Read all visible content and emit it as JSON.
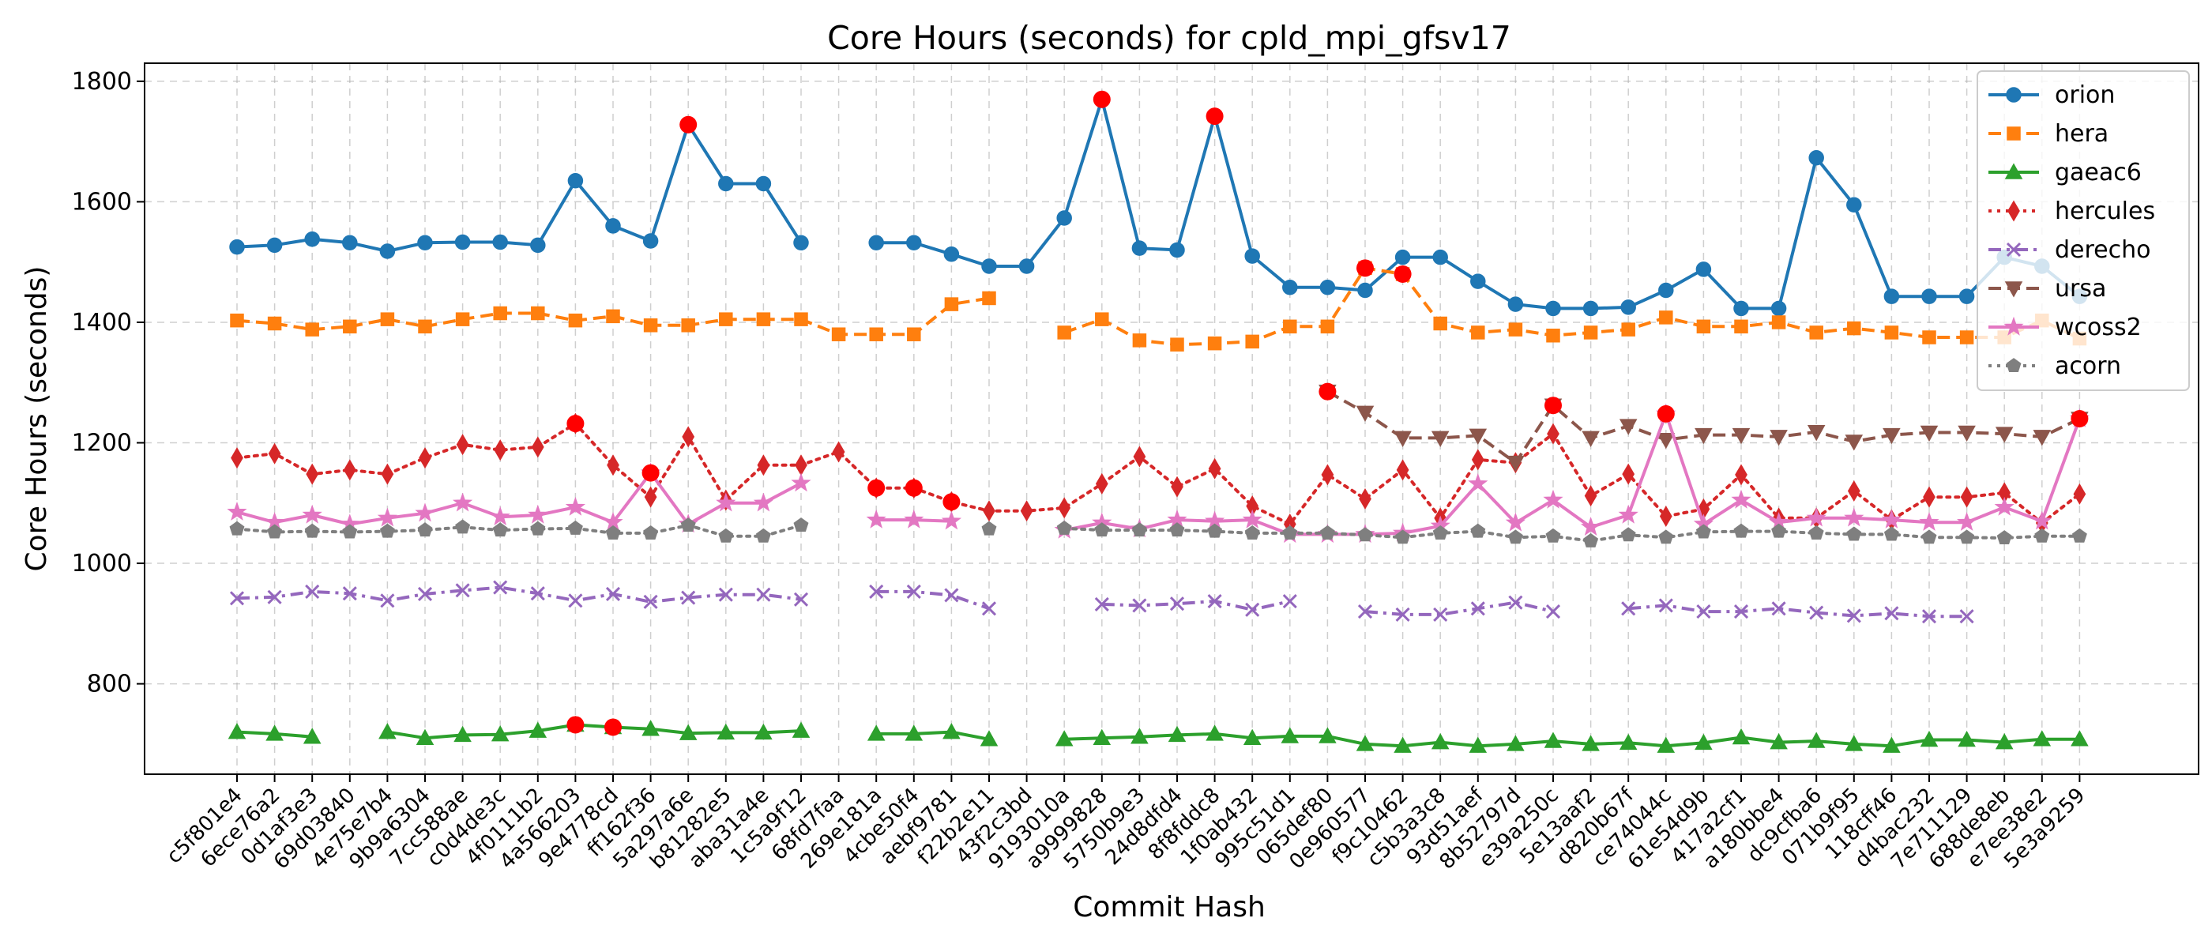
{
  "chart_data": {
    "type": "line",
    "title": "Core Hours (seconds) for cpld_mpi_gfsv17",
    "xlabel": "Commit Hash",
    "ylabel": "Core Hours (seconds)",
    "ylim": [
      650,
      1830
    ],
    "yticks": [
      800,
      1000,
      1200,
      1400,
      1600,
      1800
    ],
    "grid": true,
    "legend_position": "top-right",
    "categories": [
      "c5f801e4",
      "6ece76a2",
      "0d1af3e3",
      "69d03840",
      "4e75e7b4",
      "9b9a6304",
      "7cc588ae",
      "c0d4de3c",
      "4f0111b2",
      "4a566203",
      "9e4778cd",
      "ff162f36",
      "5a297a6e",
      "b81282e5",
      "aba31a4e",
      "1c5a9f12",
      "68fd7faa",
      "269e181a",
      "4cbe50f4",
      "aebf9781",
      "f22b2e11",
      "43f2c3bd",
      "9193010a",
      "a9999828",
      "5750b9e3",
      "24d8dfd4",
      "8f8fddc8",
      "1f0ab432",
      "995c51d1",
      "065def80",
      "0e960577",
      "f9c10462",
      "c5b3a3c8",
      "93d51aef",
      "8b52797d",
      "e39a250c",
      "5e13aaf2",
      "d820b67f",
      "ce74044c",
      "61e54d9b",
      "417a2cf1",
      "a180bbe4",
      "dc9cfba6",
      "071b9f95",
      "118cff46",
      "d4bac232",
      "7e711129",
      "688de8eb",
      "e7ee38e2",
      "5e3a9259"
    ],
    "series": [
      {
        "name": "orion",
        "color": "#1f77b4",
        "marker": "circle",
        "dash": "solid",
        "values": [
          1525,
          1528,
          1538,
          1532,
          1518,
          1532,
          1533,
          1533,
          1528,
          1635,
          1560,
          1535,
          1728,
          1630,
          1630,
          1532,
          null,
          1532,
          1532,
          1513,
          1493,
          1493,
          1573,
          1770,
          1523,
          1520,
          1742,
          1510,
          1458,
          1458,
          1453,
          1508,
          1508,
          1468,
          1430,
          1423,
          1423,
          1425,
          1453,
          1488,
          1423,
          1423,
          1673,
          1595,
          1443,
          1443,
          1443,
          1508,
          1493,
          1443
        ]
      },
      {
        "name": "hera",
        "color": "#ff7f0e",
        "marker": "square",
        "dash": "dashed",
        "values": [
          1403,
          1398,
          1388,
          1393,
          1405,
          1393,
          1405,
          1415,
          1415,
          1403,
          1410,
          1395,
          1395,
          1405,
          1405,
          1405,
          1380,
          1380,
          1380,
          1430,
          1440,
          null,
          1383,
          1405,
          1370,
          1363,
          1365,
          1368,
          1393,
          1393,
          1490,
          1480,
          1398,
          1383,
          1388,
          1378,
          1383,
          1388,
          1408,
          1393,
          1393,
          1400,
          1383,
          1390,
          1383,
          1375,
          1375,
          1375,
          1403,
          1373
        ]
      },
      {
        "name": "gaeac6",
        "color": "#2ca02c",
        "marker": "triangle",
        "dash": "solid",
        "values": [
          720,
          717,
          712,
          null,
          720,
          710,
          715,
          716,
          722,
          732,
          728,
          725,
          718,
          719,
          719,
          722,
          null,
          717,
          717,
          720,
          708,
          null,
          708,
          710,
          712,
          715,
          717,
          710,
          713,
          713,
          700,
          697,
          703,
          697,
          700,
          705,
          700,
          702,
          697,
          702,
          711,
          703,
          705,
          700,
          697,
          707,
          707,
          703,
          708,
          708
        ]
      },
      {
        "name": "hercules",
        "color": "#d62728",
        "marker": "diamond",
        "dash": "dotted",
        "values": [
          1175,
          1182,
          1148,
          1155,
          1148,
          1175,
          1197,
          1188,
          1193,
          1232,
          1163,
          1110,
          1210,
          1105,
          1163,
          1163,
          1185,
          1125,
          1125,
          1102,
          1087,
          1087,
          1092,
          1132,
          1177,
          1127,
          1157,
          1095,
          1065,
          1147,
          1107,
          1155,
          1075,
          1172,
          1167,
          1215,
          1112,
          1148,
          1078,
          1090,
          1147,
          1075,
          1075,
          1120,
          1072,
          1110,
          1110,
          1117,
          1067,
          1115
        ]
      },
      {
        "name": "derecho",
        "color": "#9467bd",
        "marker": "x",
        "dash": "dashdot",
        "values": [
          942,
          944,
          953,
          950,
          938,
          949,
          955,
          960,
          950,
          938,
          949,
          936,
          943,
          948,
          948,
          940,
          null,
          953,
          953,
          947,
          925,
          null,
          null,
          932,
          930,
          933,
          937,
          923,
          937,
          null,
          920,
          915,
          915,
          925,
          935,
          920,
          null,
          925,
          930,
          920,
          920,
          925,
          918,
          913,
          917,
          912,
          912,
          null,
          null,
          null
        ]
      },
      {
        "name": "ursa",
        "color": "#8c564b",
        "marker": "triangle-down",
        "dash": "dashed",
        "values": [
          null,
          null,
          null,
          null,
          null,
          null,
          null,
          null,
          null,
          null,
          null,
          null,
          null,
          null,
          null,
          null,
          null,
          null,
          null,
          null,
          null,
          null,
          null,
          null,
          null,
          null,
          null,
          null,
          null,
          1285,
          1250,
          1208,
          1208,
          1212,
          1167,
          1262,
          1208,
          1228,
          1205,
          1213,
          1213,
          1210,
          1218,
          1202,
          1213,
          1217,
          1217,
          1215,
          1210,
          1240
        ]
      },
      {
        "name": "wcoss2",
        "color": "#e377c2",
        "marker": "star",
        "dash": "solid",
        "values": [
          1085,
          1068,
          1080,
          1065,
          1075,
          1083,
          1100,
          1077,
          1080,
          1093,
          1068,
          1150,
          1065,
          1100,
          1100,
          1133,
          null,
          1072,
          1072,
          1070,
          null,
          null,
          1055,
          1067,
          1057,
          1072,
          1070,
          1072,
          1048,
          1048,
          1048,
          1050,
          1062,
          1132,
          1067,
          1105,
          1060,
          1080,
          1248,
          1065,
          1105,
          1068,
          1075,
          1075,
          1072,
          1068,
          1068,
          1093,
          1070,
          1240
        ]
      },
      {
        "name": "acorn",
        "color": "#7f7f7f",
        "marker": "pentagon",
        "dash": "dotted",
        "values": [
          1057,
          1052,
          1053,
          1052,
          1053,
          1055,
          1060,
          1055,
          1057,
          1058,
          1050,
          1050,
          1063,
          1045,
          1045,
          1063,
          null,
          null,
          null,
          null,
          1057,
          null,
          1058,
          1055,
          1055,
          1055,
          1053,
          1050,
          1050,
          1050,
          1047,
          1043,
          1050,
          1053,
          1043,
          1045,
          1037,
          1047,
          1043,
          1052,
          1053,
          1053,
          1050,
          1048,
          1048,
          1043,
          1043,
          1042,
          1045,
          1045
        ]
      }
    ],
    "highlighted_points": [
      {
        "series": "orion",
        "category": "5a297a6e"
      },
      {
        "series": "orion",
        "category": "a9999828"
      },
      {
        "series": "orion",
        "category": "8f8fddc8"
      },
      {
        "series": "hera",
        "category": "0e960577"
      },
      {
        "series": "hera",
        "category": "f9c10462"
      },
      {
        "series": "gaeac6",
        "category": "4a566203"
      },
      {
        "series": "gaeac6",
        "category": "9e4778cd"
      },
      {
        "series": "hercules",
        "category": "4a566203"
      },
      {
        "series": "hercules",
        "category": "269e181a"
      },
      {
        "series": "hercules",
        "category": "4cbe50f4"
      },
      {
        "series": "hercules",
        "category": "aebf9781"
      },
      {
        "series": "ursa",
        "category": "065def80"
      },
      {
        "series": "ursa",
        "category": "e39a250c"
      },
      {
        "series": "wcoss2",
        "category": "ff162f36"
      },
      {
        "series": "wcoss2",
        "category": "ce74044c"
      },
      {
        "series": "wcoss2",
        "category": "5e3a9259"
      }
    ],
    "highlight_color": "#ff0000"
  }
}
